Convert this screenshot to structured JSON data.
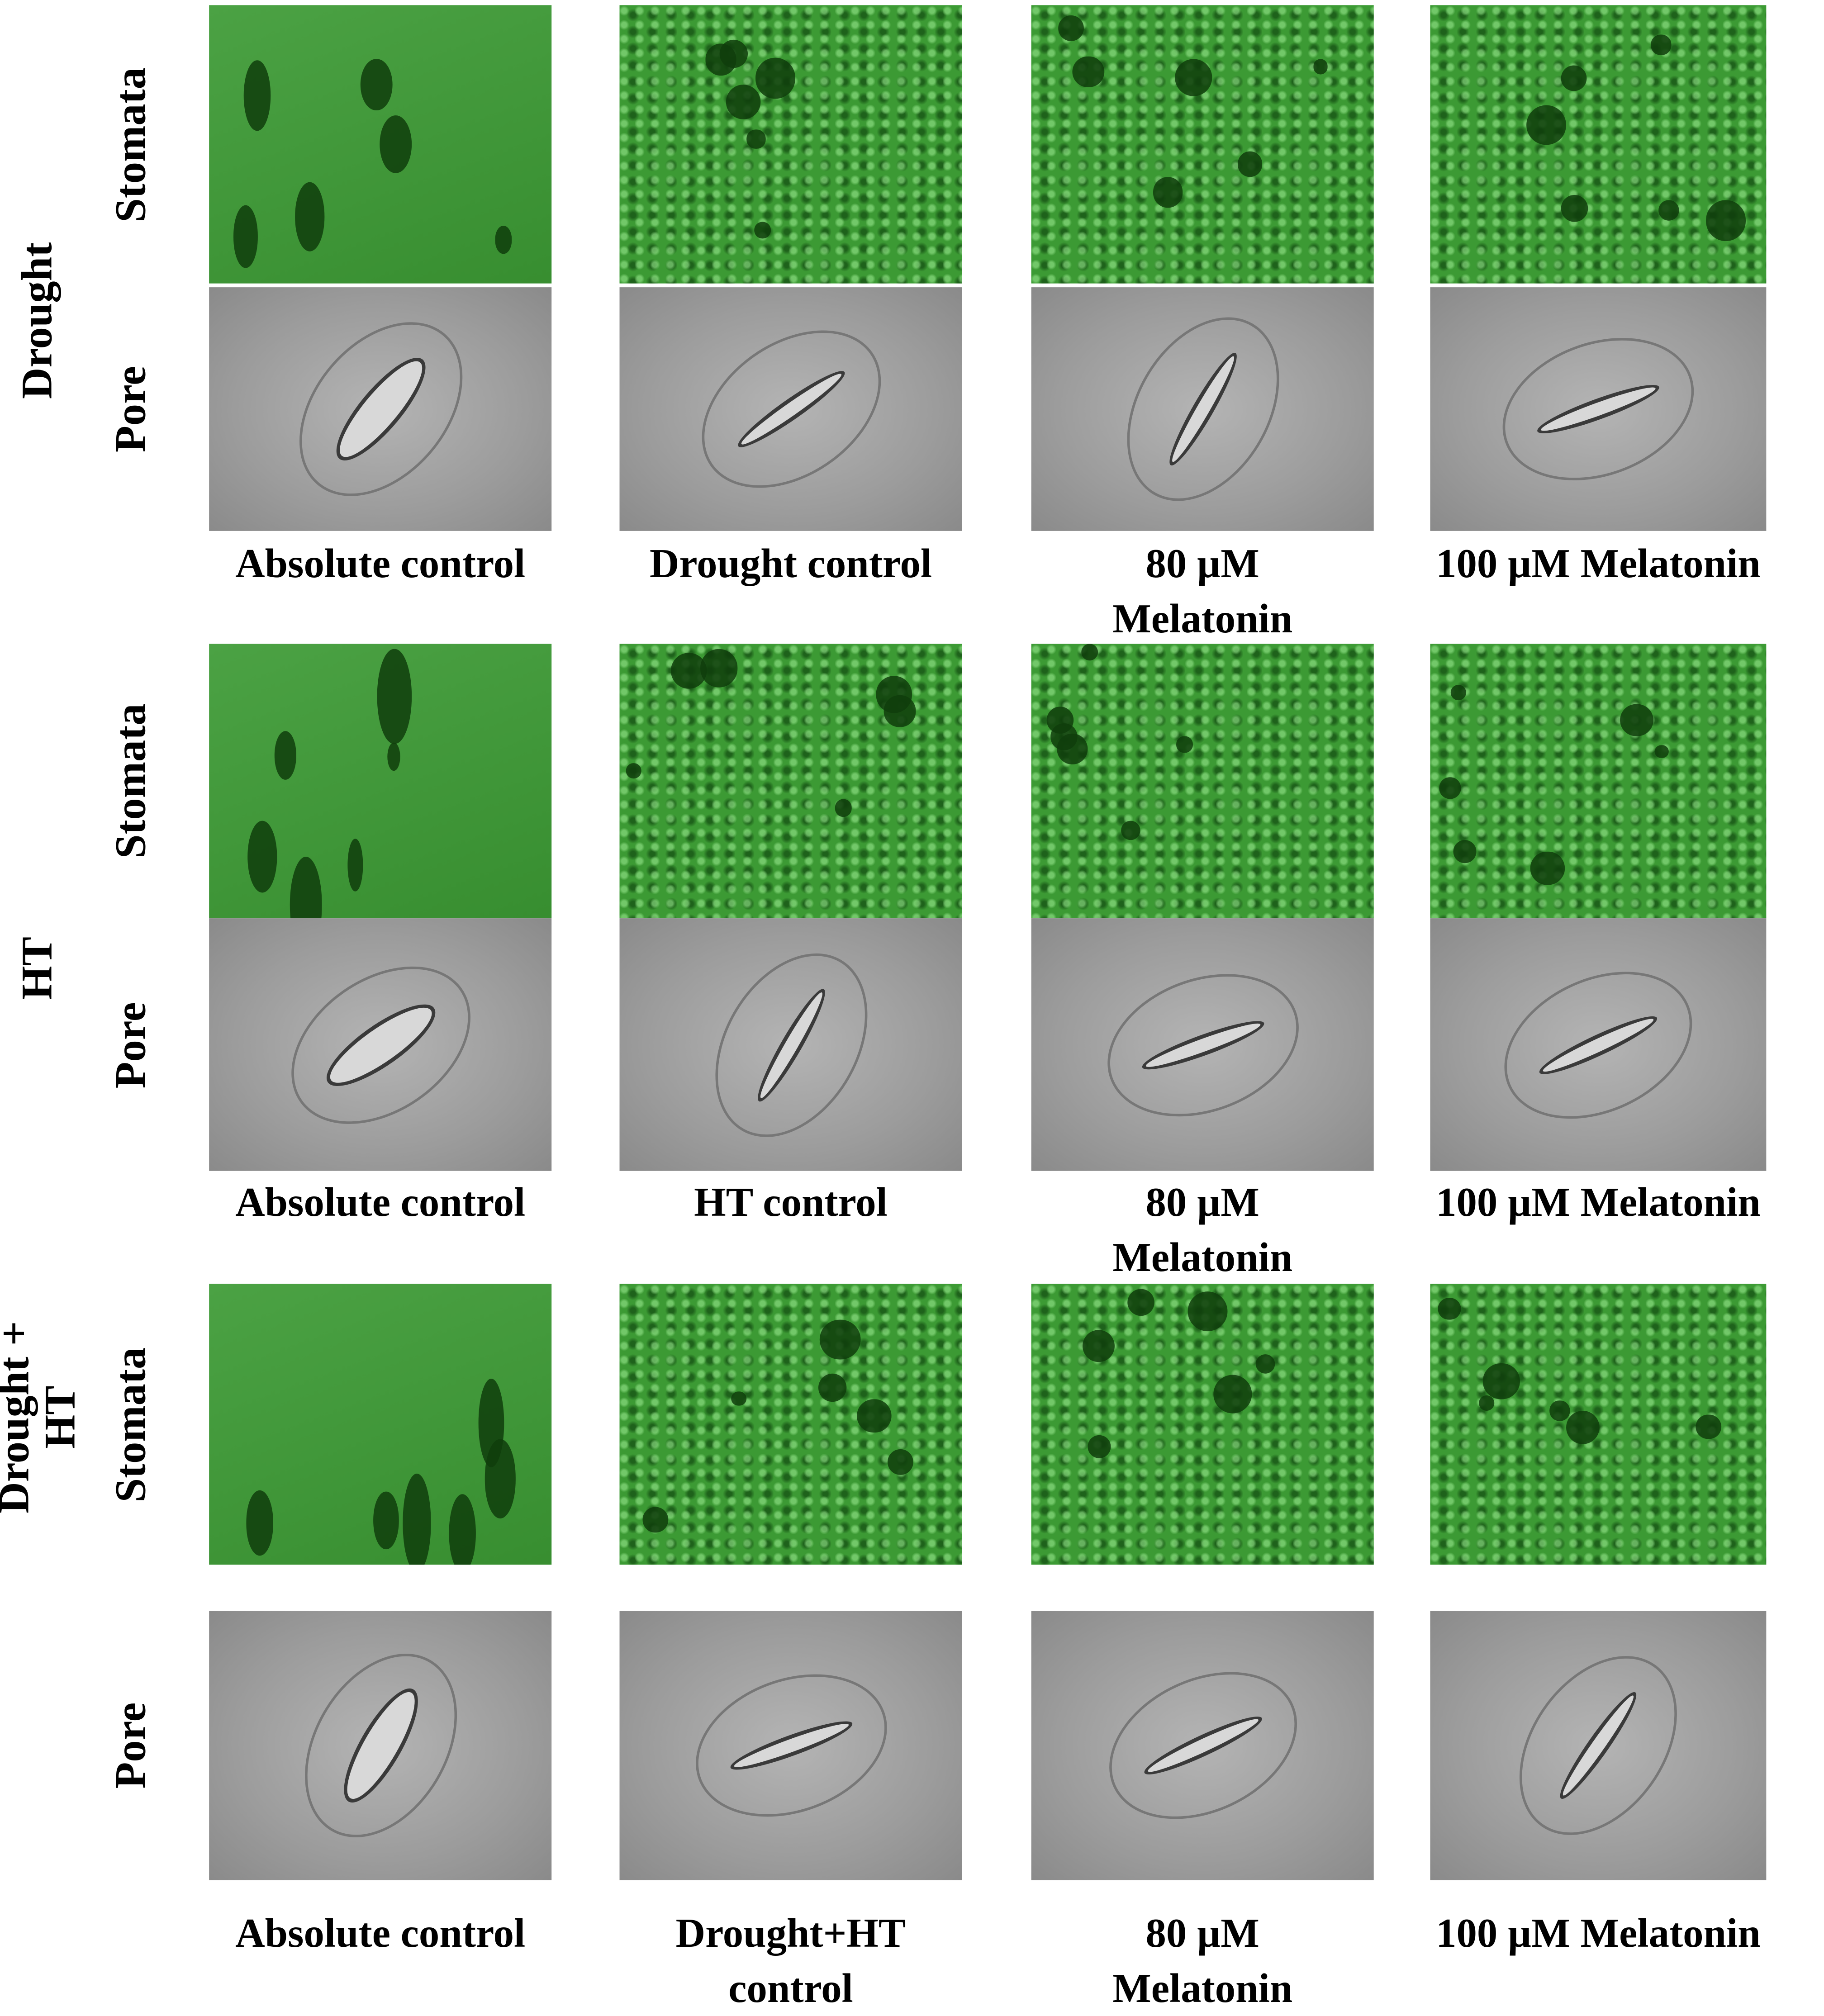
{
  "groups": [
    {
      "label": "Drought",
      "rows": [
        "Stomata",
        "Pore"
      ],
      "captions": [
        "Absolute control",
        "Drought control",
        "80 µM Melatonin",
        "100 µM Melatonin"
      ]
    },
    {
      "label": "HT",
      "rows": [
        "Stomata",
        "Pore"
      ],
      "captions": [
        "Absolute control",
        "HT control",
        "80 µM Melatonin",
        "100 µM Melatonin"
      ]
    },
    {
      "label": "Drought + HT",
      "rows": [
        "Stomata",
        "Pore"
      ],
      "captions": [
        "Absolute control",
        "Drought+HT control",
        "80 µM Melatonin",
        "100 µM Melatonin"
      ]
    }
  ]
}
